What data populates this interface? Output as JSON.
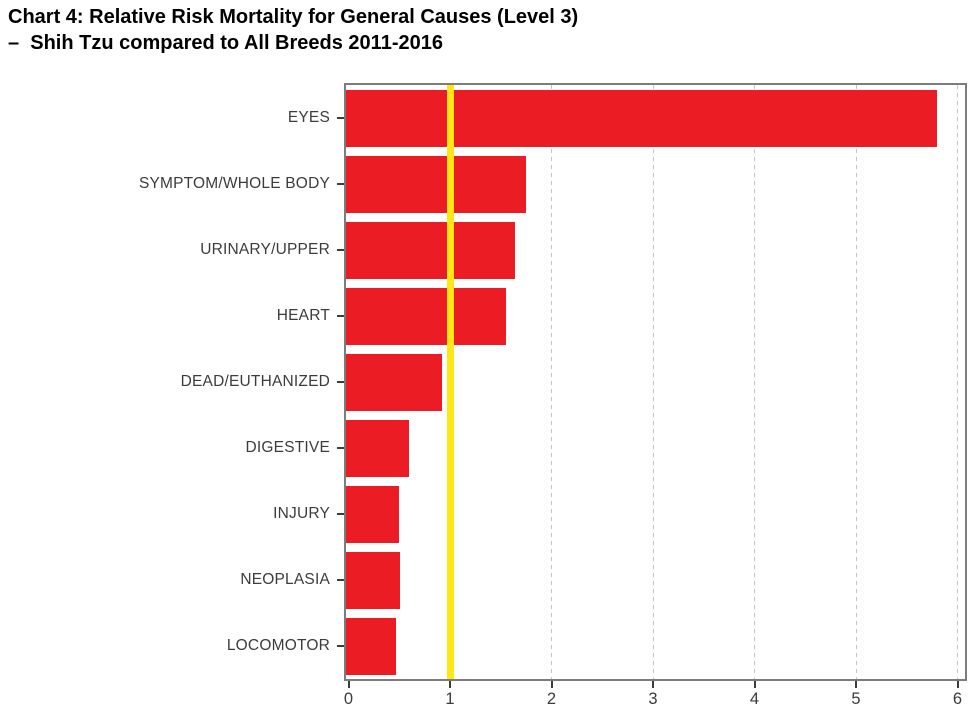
{
  "header": {
    "title_line1": "Chart 4: Relative Risk Mortality for General Causes (Level 3)",
    "title_line2": "–  Shih Tzu compared to All Breeds 2011-2016"
  },
  "chart_data": {
    "type": "bar",
    "orientation": "horizontal",
    "title": "Chart 4: Relative Risk Mortality for General Causes (Level 3) – Shih Tzu compared to All Breeds 2011-2016",
    "xlabel": "",
    "ylabel": "",
    "categories": [
      "EYES",
      "SYMPTOM/WHOLE BODY",
      "URINARY/UPPER",
      "HEART",
      "DEAD/EUTHANIZED",
      "DIGESTIVE",
      "INJURY",
      "NEOPLASIA",
      "LOCOMOTOR"
    ],
    "values": [
      5.8,
      1.75,
      1.64,
      1.55,
      0.92,
      0.6,
      0.5,
      0.51,
      0.47
    ],
    "x_ticks": [
      "0",
      "1",
      "2",
      "3",
      "4",
      "5",
      "6"
    ],
    "xlim": [
      0,
      6.08
    ],
    "reference_line_x": 1,
    "gridlines_x": [
      1,
      2,
      3,
      4,
      5,
      6
    ],
    "grid_style": "dashed-vertical",
    "legend": "none",
    "colors": {
      "bar": "#EC1C24",
      "reference_line": "#FFE617",
      "grid": "#C3C3C3",
      "plot_border": "#7C7C7C",
      "axis_text": "#3C3C3C",
      "title_text": "#000000",
      "background": "#FFFFFF"
    }
  }
}
